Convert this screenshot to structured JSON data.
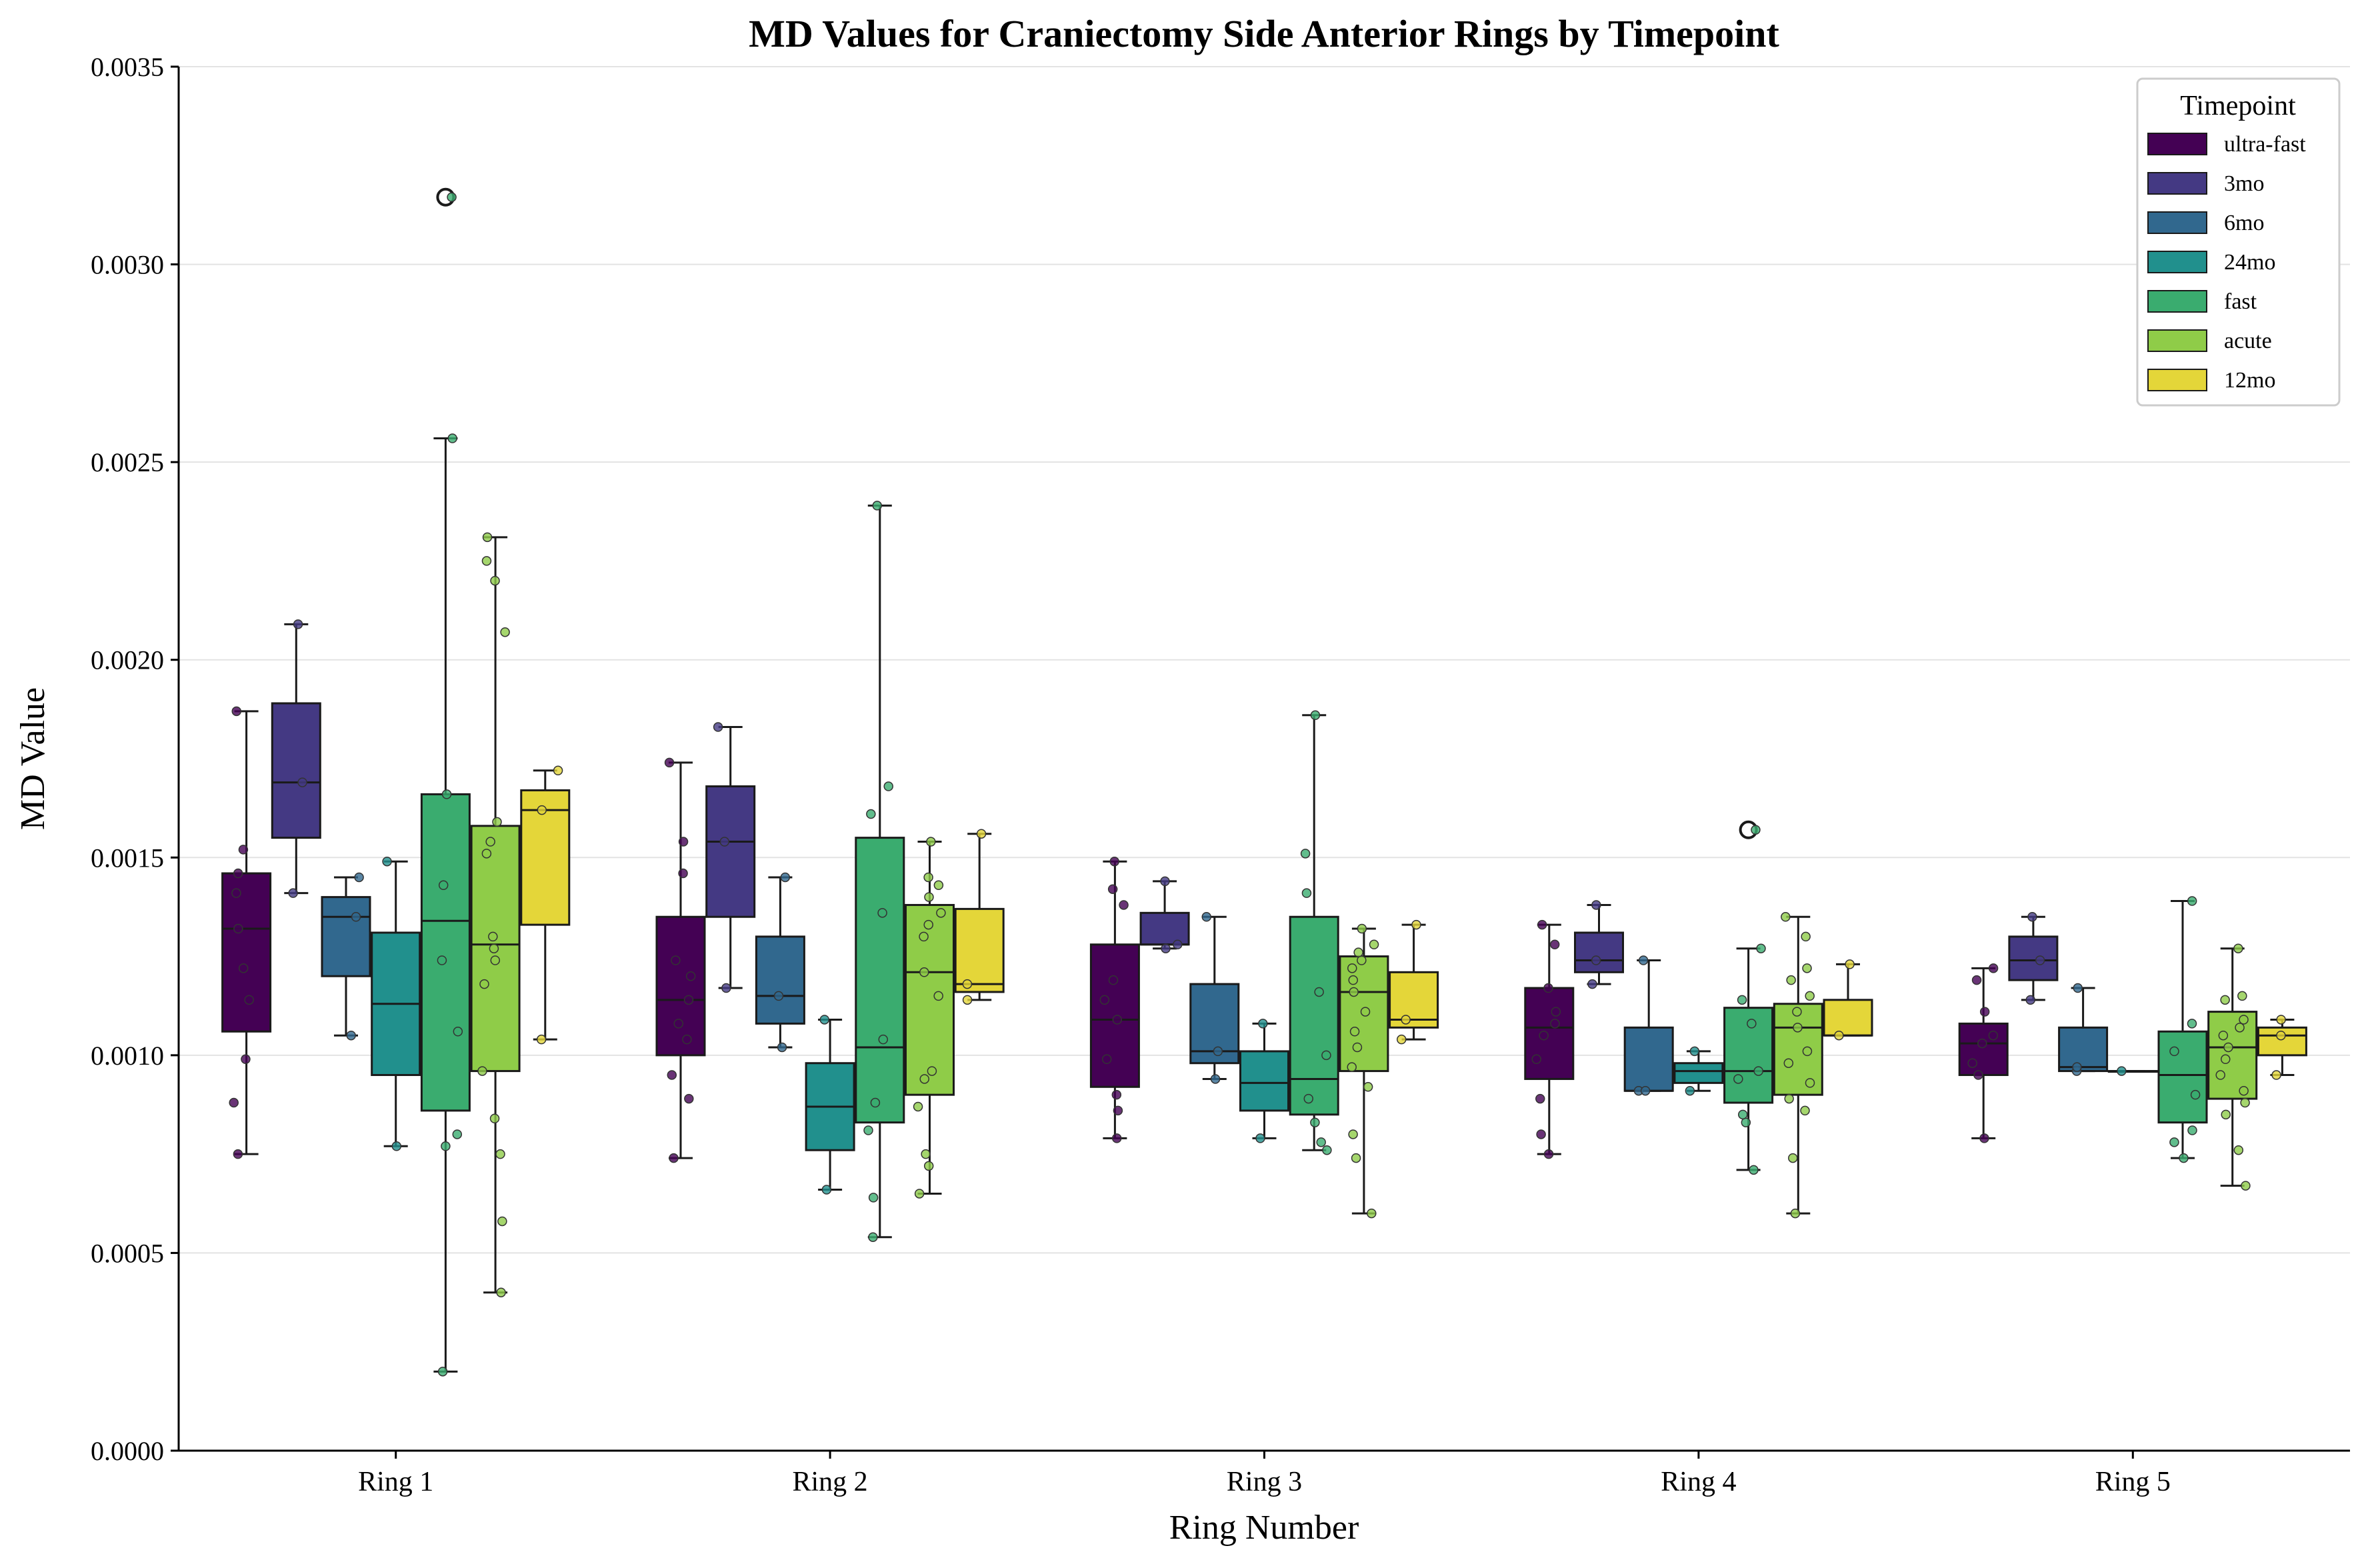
{
  "chart_data": {
    "type": "box",
    "title": "MD Values for Craniectomy Side Anterior Rings by Timepoint",
    "xlabel": "Ring Number",
    "ylabel": "MD Value",
    "ylim": [
      0,
      0.0035
    ],
    "yticks": [
      "0.0000",
      "0.0005",
      "0.0010",
      "0.0015",
      "0.0020",
      "0.0025",
      "0.0030",
      "0.0035"
    ],
    "categories": [
      "Ring 1",
      "Ring 2",
      "Ring 3",
      "Ring 4",
      "Ring 5"
    ],
    "grid": "horizontal",
    "legend": {
      "title": "Timepoint",
      "position": "top-right"
    },
    "series": [
      {
        "name": "ultra-fast",
        "color": "#440154",
        "boxes": [
          {
            "whislo": 0.00075,
            "q1": 0.00106,
            "med": 0.00132,
            "q3": 0.00146,
            "whishi": 0.00187,
            "fliers": [],
            "points": [
              0.00075,
              0.00088,
              0.00099,
              0.00114,
              0.00122,
              0.00132,
              0.00141,
              0.00146,
              0.00152,
              0.00187
            ]
          },
          {
            "whislo": 0.00074,
            "q1": 0.001,
            "med": 0.00114,
            "q3": 0.00135,
            "whishi": 0.00174,
            "fliers": [],
            "points": [
              0.00074,
              0.00089,
              0.00095,
              0.00104,
              0.00108,
              0.00114,
              0.0012,
              0.00124,
              0.00146,
              0.00154,
              0.00174
            ]
          },
          {
            "whislo": 0.00079,
            "q1": 0.00092,
            "med": 0.00109,
            "q3": 0.00128,
            "whishi": 0.00149,
            "fliers": [],
            "points": [
              0.00079,
              0.00086,
              0.0009,
              0.00099,
              0.00109,
              0.00114,
              0.00119,
              0.00138,
              0.00142,
              0.00149
            ]
          },
          {
            "whislo": 0.00075,
            "q1": 0.00094,
            "med": 0.00107,
            "q3": 0.00117,
            "whishi": 0.00133,
            "fliers": [],
            "points": [
              0.00075,
              0.0008,
              0.00089,
              0.00099,
              0.00105,
              0.00108,
              0.00111,
              0.00117,
              0.00128,
              0.00133
            ]
          },
          {
            "whislo": 0.00079,
            "q1": 0.00095,
            "med": 0.00103,
            "q3": 0.00108,
            "whishi": 0.00122,
            "fliers": [],
            "points": [
              0.00079,
              0.00095,
              0.00098,
              0.00103,
              0.00105,
              0.00111,
              0.00119,
              0.00122
            ]
          }
        ]
      },
      {
        "name": "3mo",
        "color": "#443983",
        "boxes": [
          {
            "whislo": 0.00141,
            "q1": 0.00155,
            "med": 0.00169,
            "q3": 0.00189,
            "whishi": 0.00209,
            "fliers": [],
            "points": [
              0.00141,
              0.00169,
              0.00209
            ]
          },
          {
            "whislo": 0.00117,
            "q1": 0.00135,
            "med": 0.00154,
            "q3": 0.00168,
            "whishi": 0.00183,
            "fliers": [],
            "points": [
              0.00117,
              0.00154,
              0.00183
            ]
          },
          {
            "whislo": 0.00127,
            "q1": 0.00128,
            "med": 0.00128,
            "q3": 0.00136,
            "whishi": 0.00144,
            "fliers": [],
            "points": [
              0.00127,
              0.00128,
              0.00144
            ]
          },
          {
            "whislo": 0.00118,
            "q1": 0.00121,
            "med": 0.00124,
            "q3": 0.00131,
            "whishi": 0.00138,
            "fliers": [],
            "points": [
              0.00118,
              0.00124,
              0.00138
            ]
          },
          {
            "whislo": 0.00114,
            "q1": 0.00119,
            "med": 0.00124,
            "q3": 0.0013,
            "whishi": 0.00135,
            "fliers": [],
            "points": [
              0.00114,
              0.00124,
              0.00135
            ]
          }
        ]
      },
      {
        "name": "6mo",
        "color": "#31688e",
        "boxes": [
          {
            "whislo": 0.00105,
            "q1": 0.0012,
            "med": 0.00135,
            "q3": 0.0014,
            "whishi": 0.00145,
            "fliers": [],
            "points": [
              0.00105,
              0.00135,
              0.00145
            ]
          },
          {
            "whislo": 0.00102,
            "q1": 0.00108,
            "med": 0.00115,
            "q3": 0.0013,
            "whishi": 0.00145,
            "fliers": [],
            "points": [
              0.00102,
              0.00115,
              0.00145
            ]
          },
          {
            "whislo": 0.00094,
            "q1": 0.00098,
            "med": 0.00101,
            "q3": 0.00118,
            "whishi": 0.00135,
            "fliers": [],
            "points": [
              0.00094,
              0.00101,
              0.00135
            ]
          },
          {
            "whislo": 0.00091,
            "q1": 0.00091,
            "med": 0.00091,
            "q3": 0.00107,
            "whishi": 0.00124,
            "fliers": [],
            "points": [
              0.00091,
              0.00091,
              0.00124
            ]
          },
          {
            "whislo": 0.00096,
            "q1": 0.00096,
            "med": 0.00097,
            "q3": 0.00107,
            "whishi": 0.00117,
            "fliers": [],
            "points": [
              0.00096,
              0.00097,
              0.00117
            ]
          }
        ]
      },
      {
        "name": "24mo",
        "color": "#21908d",
        "boxes": [
          {
            "whislo": 0.00077,
            "q1": 0.00095,
            "med": 0.00113,
            "q3": 0.00131,
            "whishi": 0.00149,
            "fliers": [],
            "points": [
              0.00077,
              0.00149
            ]
          },
          {
            "whislo": 0.00066,
            "q1": 0.00076,
            "med": 0.00087,
            "q3": 0.00098,
            "whishi": 0.00109,
            "fliers": [],
            "points": [
              0.00066,
              0.00109
            ]
          },
          {
            "whislo": 0.00079,
            "q1": 0.00086,
            "med": 0.00093,
            "q3": 0.00101,
            "whishi": 0.00108,
            "fliers": [],
            "points": [
              0.00079,
              0.00108
            ]
          },
          {
            "whislo": 0.00091,
            "q1": 0.00093,
            "med": 0.00096,
            "q3": 0.00098,
            "whishi": 0.00101,
            "fliers": [],
            "points": [
              0.00091,
              0.00101
            ]
          },
          {
            "whislo": 0.00096,
            "q1": 0.00096,
            "med": 0.00096,
            "q3": 0.00096,
            "whishi": 0.00096,
            "fliers": [],
            "points": [
              0.00096
            ]
          }
        ]
      },
      {
        "name": "fast",
        "color": "#3aac6f",
        "boxes": [
          {
            "whislo": 0.0002,
            "q1": 0.00086,
            "med": 0.00134,
            "q3": 0.00166,
            "whishi": 0.00256,
            "fliers": [
              0.00317
            ],
            "points": [
              0.0002,
              0.00077,
              0.0008,
              0.00106,
              0.00124,
              0.00143,
              0.00166,
              0.00256,
              0.00317
            ]
          },
          {
            "whislo": 0.00054,
            "q1": 0.00083,
            "med": 0.00102,
            "q3": 0.00155,
            "whishi": 0.00239,
            "fliers": [],
            "points": [
              0.00054,
              0.00064,
              0.00081,
              0.00088,
              0.00104,
              0.00136,
              0.00161,
              0.00168,
              0.00239
            ]
          },
          {
            "whislo": 0.00076,
            "q1": 0.00085,
            "med": 0.00094,
            "q3": 0.00135,
            "whishi": 0.00186,
            "fliers": [],
            "points": [
              0.00076,
              0.00078,
              0.00083,
              0.00089,
              0.001,
              0.00116,
              0.00141,
              0.00151,
              0.00186
            ]
          },
          {
            "whislo": 0.00071,
            "q1": 0.00088,
            "med": 0.00096,
            "q3": 0.00112,
            "whishi": 0.00127,
            "fliers": [
              0.00157
            ],
            "points": [
              0.00071,
              0.00083,
              0.00085,
              0.00094,
              0.00096,
              0.00108,
              0.00114,
              0.00127,
              0.00157
            ]
          },
          {
            "whislo": 0.00074,
            "q1": 0.00083,
            "med": 0.00095,
            "q3": 0.00106,
            "whishi": 0.00139,
            "fliers": [],
            "points": [
              0.00074,
              0.00078,
              0.00081,
              0.0009,
              0.00101,
              0.00108,
              0.00139
            ]
          }
        ]
      },
      {
        "name": "acute",
        "color": "#8fcc48",
        "boxes": [
          {
            "whislo": 0.0004,
            "q1": 0.00096,
            "med": 0.00128,
            "q3": 0.00158,
            "whishi": 0.00231,
            "fliers": [],
            "points": [
              0.0004,
              0.00058,
              0.00075,
              0.00084,
              0.00096,
              0.00118,
              0.00124,
              0.00127,
              0.0013,
              0.00151,
              0.00154,
              0.00159,
              0.00207,
              0.0022,
              0.00225,
              0.00231
            ]
          },
          {
            "whislo": 0.00065,
            "q1": 0.0009,
            "med": 0.00121,
            "q3": 0.00138,
            "whishi": 0.00154,
            "fliers": [],
            "points": [
              0.00065,
              0.00072,
              0.00075,
              0.00087,
              0.00094,
              0.00096,
              0.00115,
              0.00121,
              0.0013,
              0.00133,
              0.00136,
              0.0014,
              0.00143,
              0.00145,
              0.00154
            ]
          },
          {
            "whislo": 0.0006,
            "q1": 0.00096,
            "med": 0.00116,
            "q3": 0.00125,
            "whishi": 0.00132,
            "fliers": [],
            "points": [
              0.0006,
              0.00074,
              0.0008,
              0.00092,
              0.00097,
              0.00102,
              0.00106,
              0.00111,
              0.00116,
              0.00119,
              0.00122,
              0.00124,
              0.00126,
              0.00128,
              0.00132
            ]
          },
          {
            "whislo": 0.0006,
            "q1": 0.0009,
            "med": 0.00107,
            "q3": 0.00113,
            "whishi": 0.00135,
            "fliers": [],
            "points": [
              0.0006,
              0.00074,
              0.00086,
              0.00089,
              0.00093,
              0.00098,
              0.00101,
              0.00107,
              0.00111,
              0.00115,
              0.00119,
              0.00122,
              0.0013,
              0.00135
            ]
          },
          {
            "whislo": 0.00067,
            "q1": 0.00089,
            "med": 0.00102,
            "q3": 0.00111,
            "whishi": 0.00127,
            "fliers": [],
            "points": [
              0.00067,
              0.00076,
              0.00085,
              0.00088,
              0.00091,
              0.00095,
              0.00099,
              0.00102,
              0.00105,
              0.00107,
              0.00109,
              0.00114,
              0.00115,
              0.00127
            ]
          }
        ]
      },
      {
        "name": "12mo",
        "color": "#e4d639",
        "boxes": [
          {
            "whislo": 0.00104,
            "q1": 0.00133,
            "med": 0.00162,
            "q3": 0.00167,
            "whishi": 0.00172,
            "fliers": [],
            "points": [
              0.00104,
              0.00162,
              0.00172
            ]
          },
          {
            "whislo": 0.00114,
            "q1": 0.00116,
            "med": 0.00118,
            "q3": 0.00137,
            "whishi": 0.00156,
            "fliers": [],
            "points": [
              0.00114,
              0.00118,
              0.00156
            ]
          },
          {
            "whislo": 0.00104,
            "q1": 0.00107,
            "med": 0.00109,
            "q3": 0.00121,
            "whishi": 0.00133,
            "fliers": [],
            "points": [
              0.00104,
              0.00109,
              0.00133
            ]
          },
          {
            "whislo": 0.00105,
            "q1": 0.00105,
            "med": 0.00105,
            "q3": 0.00114,
            "whishi": 0.00123,
            "fliers": [],
            "points": [
              0.00105,
              0.00123
            ]
          },
          {
            "whislo": 0.00095,
            "q1": 0.001,
            "med": 0.00105,
            "q3": 0.00107,
            "whishi": 0.00109,
            "fliers": [],
            "points": [
              0.00095,
              0.00105,
              0.00109
            ]
          }
        ]
      }
    ]
  }
}
